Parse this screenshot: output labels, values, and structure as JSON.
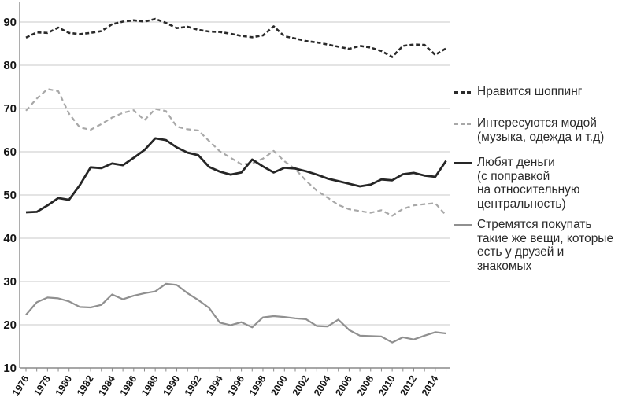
{
  "figure": {
    "background": "#ffffff"
  },
  "legend": {
    "items": [
      {
        "label": "Нравится шоппинг",
        "marker": "dark-dashed-line",
        "color": "#2a2a2a"
      },
      {
        "label": "Интересуются модой\n(музыка, одежда и т.д)",
        "marker": "gray-dashed-line",
        "color": "#a8a8a8"
      },
      {
        "label": "Любят деньги\n(с поправкой\nна относительную\nцентральность)",
        "marker": "dark-solid-line",
        "color": "#262626"
      },
      {
        "label": "Стремятся покупать\nтакие же вещи, которые\nесть у друзей и знакомых",
        "marker": "gray-solid-line",
        "color": "#909090"
      }
    ]
  },
  "chart_data": {
    "type": "line",
    "title": "",
    "xlabel": "",
    "ylabel": "",
    "grid": true,
    "legend_position": "right",
    "axis_color": "#8a8a8a",
    "grid_color": "#cacaca",
    "ylim": [
      10,
      93
    ],
    "y_ticks": [
      10,
      20,
      30,
      40,
      50,
      60,
      70,
      80,
      90
    ],
    "x_tick_labels": [
      "1976",
      "1978",
      "1980",
      "1982",
      "1984",
      "1986",
      "1988",
      "1990",
      "1992",
      "1994",
      "1996",
      "1998",
      "2000",
      "2002",
      "2004",
      "2006",
      "2008",
      "2010",
      "2012",
      "2014"
    ],
    "x": [
      1976,
      1977,
      1978,
      1979,
      1980,
      1981,
      1982,
      1983,
      1984,
      1985,
      1986,
      1987,
      1988,
      1989,
      1990,
      1991,
      1992,
      1993,
      1994,
      1995,
      1996,
      1997,
      1998,
      1999,
      2000,
      2001,
      2002,
      2003,
      2004,
      2005,
      2006,
      2007,
      2008,
      2009,
      2010,
      2011,
      2012,
      2013,
      2014,
      2015
    ],
    "series": [
      {
        "name": "Нравится шоппинг",
        "style": "dashed",
        "color": "#2a2a2a",
        "width": 2.6,
        "dash": "5,3",
        "values": [
          86.4,
          87.6,
          87.5,
          88.7,
          87.5,
          87.2,
          87.5,
          87.9,
          89.5,
          90.1,
          90.4,
          90.1,
          90.7,
          89.8,
          88.6,
          88.9,
          88.2,
          87.8,
          87.7,
          87.3,
          86.8,
          86.5,
          86.9,
          89.0,
          86.7,
          86.2,
          85.6,
          85.3,
          84.8,
          84.3,
          83.8,
          84.5,
          84.1,
          83.3,
          81.9,
          84.5,
          84.8,
          84.7,
          82.4,
          83.9
        ]
      },
      {
        "name": "Интересуются модой (музыка, одежда и т.д)",
        "style": "dashed",
        "color": "#a8a8a8",
        "width": 2.2,
        "dash": "6,4",
        "values": [
          69.5,
          72.3,
          74.5,
          74.0,
          68.8,
          65.6,
          65.1,
          66.4,
          67.9,
          69.0,
          69.6,
          67.3,
          69.9,
          69.4,
          65.8,
          65.2,
          64.9,
          62.5,
          60.1,
          58.6,
          57.1,
          57.3,
          58.4,
          60.2,
          57.8,
          56.0,
          53.3,
          51.0,
          49.4,
          47.7,
          46.7,
          46.3,
          45.9,
          46.5,
          45.2,
          46.8,
          47.6,
          47.9,
          48.1,
          45.3
        ]
      },
      {
        "name": "Любят деньги (с поправкой на относительную центральность)",
        "style": "solid",
        "color": "#262626",
        "width": 2.8,
        "dash": "",
        "values": [
          46.0,
          46.1,
          47.6,
          49.3,
          48.9,
          52.3,
          56.4,
          56.2,
          57.3,
          56.9,
          58.6,
          60.4,
          63.1,
          62.7,
          61.0,
          59.8,
          59.2,
          56.5,
          55.4,
          54.7,
          55.2,
          58.2,
          56.6,
          55.2,
          56.3,
          56.1,
          55.5,
          54.7,
          53.8,
          53.2,
          52.6,
          52.0,
          52.4,
          53.6,
          53.4,
          54.8,
          55.1,
          54.5,
          54.2,
          57.9
        ]
      },
      {
        "name": "Стремятся покупать такие же вещи, которые есть у друзей и знакомых",
        "style": "solid",
        "color": "#909090",
        "width": 2.2,
        "dash": "",
        "values": [
          22.3,
          25.2,
          26.3,
          26.1,
          25.4,
          24.1,
          24.0,
          24.6,
          27.0,
          25.9,
          26.7,
          27.3,
          27.7,
          29.5,
          29.2,
          27.3,
          25.7,
          23.9,
          20.5,
          19.9,
          20.6,
          19.4,
          21.7,
          22.0,
          21.8,
          21.5,
          21.3,
          19.7,
          19.6,
          21.2,
          18.8,
          17.5,
          17.4,
          17.3,
          15.9,
          17.1,
          16.6,
          17.5,
          18.3,
          18.0
        ]
      }
    ]
  }
}
